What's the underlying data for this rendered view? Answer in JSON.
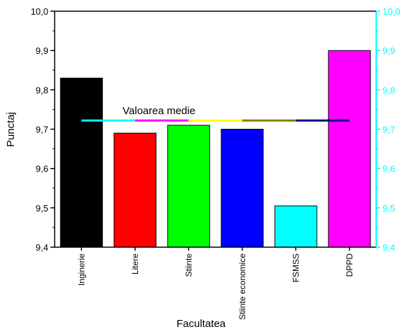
{
  "chart_data": {
    "type": "bar",
    "categories": [
      "Inginerie",
      "Litere",
      "Stiinte",
      "Stiinte economice",
      "FSMSS",
      "DPPD"
    ],
    "values": [
      9.83,
      9.69,
      9.71,
      9.7,
      9.505,
      9.9
    ],
    "bar_colors": [
      "#000000",
      "#ff0000",
      "#00ff00",
      "#0000ff",
      "#00ffff",
      "#ff00ff"
    ],
    "xlabel": "Facultatea",
    "ylabel": "Punctaj",
    "ylim": [
      9.4,
      10.0
    ],
    "yticks": [
      "9,4",
      "9,5",
      "9,6",
      "9,7",
      "9,8",
      "9,9",
      "10,0"
    ],
    "right_axis_color": "#00ffff",
    "grid": false,
    "mean_line": {
      "label": "Valoarea medie",
      "value": 9.722,
      "segment_colors": [
        "#00ffff",
        "#ff00ff",
        "#ffff00",
        "#808000",
        "#000080"
      ]
    }
  }
}
